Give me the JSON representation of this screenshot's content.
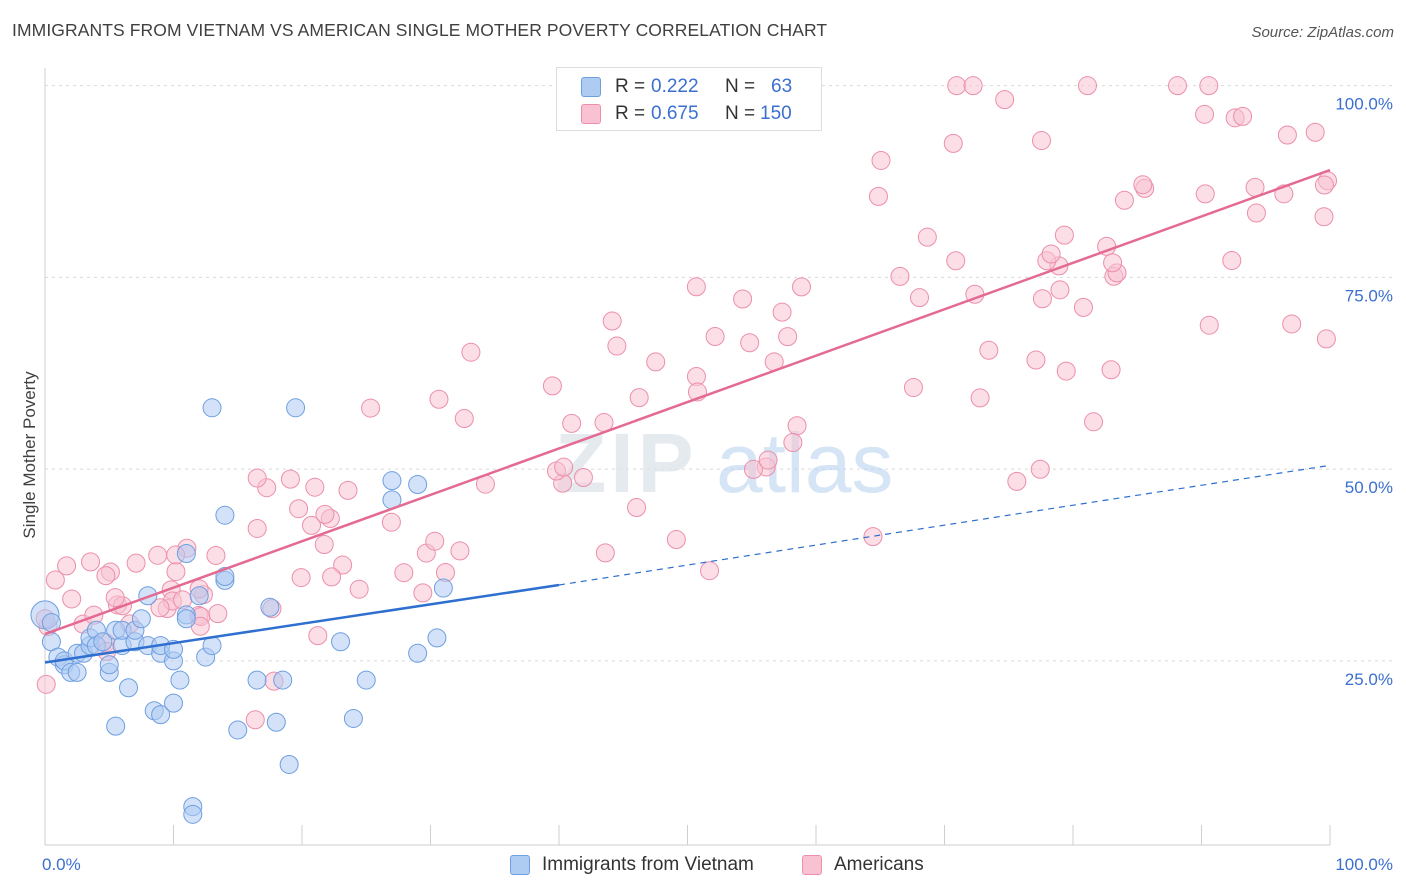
{
  "title": "IMMIGRANTS FROM VIETNAM VS AMERICAN SINGLE MOTHER POVERTY CORRELATION CHART",
  "source": "Source: ZipAtlas.com",
  "watermark": {
    "zip": "ZIP",
    "atlas": "atlas"
  },
  "legend": {
    "rows": [
      {
        "r_label": "R =",
        "r_value": "0.222",
        "n_label": "N =",
        "n_value": "63"
      },
      {
        "r_label": "R =",
        "r_value": "0.675",
        "n_label": "N =",
        "n_value": "150"
      }
    ]
  },
  "bottom_legend": {
    "series1": "Immigrants from Vietnam",
    "series2": "Americans"
  },
  "colors": {
    "blue_fill": "#aecbf2",
    "blue_stroke": "#6e9fe0",
    "blue_line": "#2e6fd0",
    "pink_fill": "#f8c2d2",
    "pink_stroke": "#ec8fab",
    "pink_line": "#e46a93",
    "axis_text": "#3b6fd0",
    "grid": "#d9d9d9"
  },
  "chart_data": {
    "type": "scatter",
    "ylabel": "Single Mother Poverty",
    "x_tick_labels": [
      "0.0%",
      "100.0%"
    ],
    "y_tick_labels": [
      "25.0%",
      "50.0%",
      "75.0%",
      "100.0%"
    ],
    "xlim": [
      0,
      100
    ],
    "ylim": [
      1,
      101
    ],
    "grid": true,
    "legend_position": "top-center",
    "series": [
      {
        "name": "Immigrants from Vietnam",
        "r": 0.222,
        "n": 63,
        "trend": {
          "x0": 0,
          "y0": 24.8,
          "x1": 40,
          "y1": 34.9,
          "extend_to_x": 100,
          "extend_to_y": 50.5
        },
        "points": [
          [
            0,
            31
          ],
          [
            0.5,
            30
          ],
          [
            0.5,
            27.5
          ],
          [
            1,
            25.5
          ],
          [
            1.5,
            24.5
          ],
          [
            1.5,
            25
          ],
          [
            2,
            23.5
          ],
          [
            2.5,
            23.5
          ],
          [
            2.5,
            26
          ],
          [
            3,
            26
          ],
          [
            3.5,
            27
          ],
          [
            3.5,
            28
          ],
          [
            4,
            29
          ],
          [
            4,
            27
          ],
          [
            4.5,
            27.5
          ],
          [
            5,
            23.5
          ],
          [
            5,
            24.5
          ],
          [
            5.5,
            16.5
          ],
          [
            5.5,
            29
          ],
          [
            6,
            27
          ],
          [
            6,
            29
          ],
          [
            6.5,
            21.5
          ],
          [
            7,
            27.5
          ],
          [
            7,
            29
          ],
          [
            7.5,
            30.5
          ],
          [
            8,
            27
          ],
          [
            8,
            33.5
          ],
          [
            8.5,
            18.5
          ],
          [
            9,
            26
          ],
          [
            9,
            27
          ],
          [
            9,
            18
          ],
          [
            10,
            25
          ],
          [
            10,
            19.5
          ],
          [
            10,
            26.5
          ],
          [
            10.5,
            22.5
          ],
          [
            11,
            31
          ],
          [
            11,
            30.5
          ],
          [
            11,
            39
          ],
          [
            11.5,
            6
          ],
          [
            11.5,
            5
          ],
          [
            12,
            33.5
          ],
          [
            12.5,
            25.5
          ],
          [
            13,
            58
          ],
          [
            13,
            27
          ],
          [
            14,
            44
          ],
          [
            14,
            35.5
          ],
          [
            14,
            36
          ],
          [
            15,
            16
          ],
          [
            16.5,
            22.5
          ],
          [
            17.5,
            32
          ],
          [
            18,
            17
          ],
          [
            18.5,
            22.5
          ],
          [
            19,
            11.5
          ],
          [
            19.5,
            58
          ],
          [
            23,
            27.5
          ],
          [
            24,
            17.5
          ],
          [
            25,
            22.5
          ],
          [
            27,
            48.5
          ],
          [
            27,
            46
          ],
          [
            29,
            26
          ],
          [
            29,
            48
          ],
          [
            30.5,
            28
          ],
          [
            31,
            34.5
          ]
        ]
      },
      {
        "name": "Americans",
        "r": 0.675,
        "n": 150,
        "trend": {
          "x0": 0,
          "y0": 28.5,
          "x1": 100,
          "y1": 89
        }
      }
    ]
  }
}
